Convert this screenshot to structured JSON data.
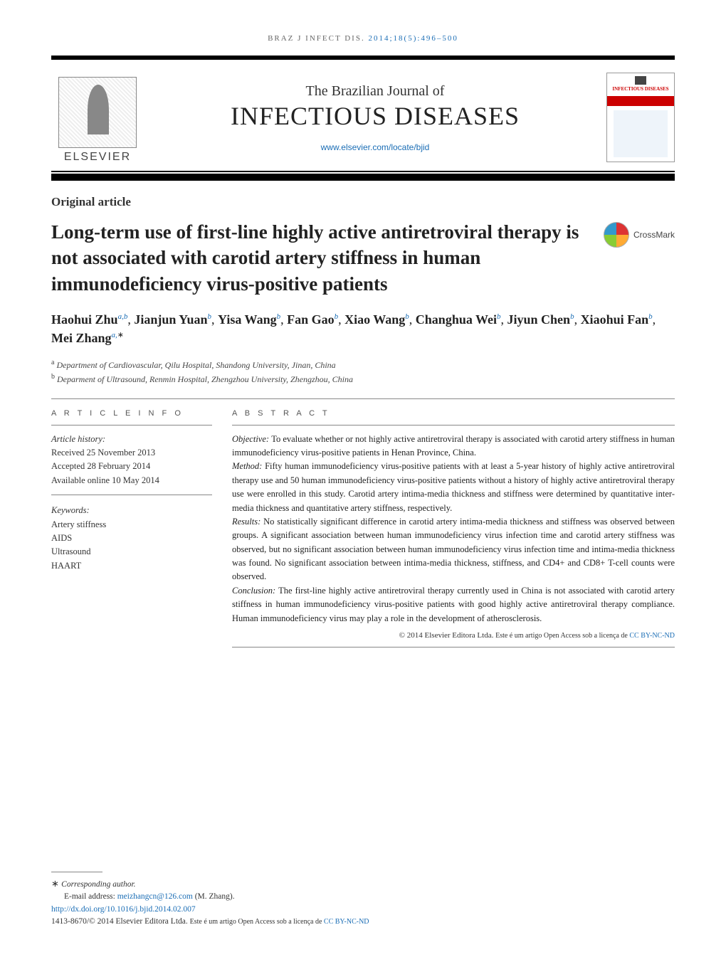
{
  "journal_ref": {
    "prefix": "BRAZ J INFECT DIS. ",
    "citation": "2014;18(5):496–500",
    "color_prefix": "#666666",
    "color_citation": "#1a6db5"
  },
  "header": {
    "elsevier_label": "ELSEVIER",
    "journal_sup": "The Brazilian Journal of",
    "journal_main": "INFECTIOUS DISEASES",
    "journal_url": "www.elsevier.com/locate/bjid",
    "cover_title": "INFECTIOUS DISEASES"
  },
  "article": {
    "type": "Original article",
    "title": "Long-term use of first-line highly active antiretroviral therapy is not associated with carotid artery stiffness in human immunodeficiency virus-positive patients",
    "crossmark_label": "CrossMark"
  },
  "authors": {
    "list": [
      {
        "name": "Haohui Zhu",
        "aff": "a,b"
      },
      {
        "name": "Jianjun Yuan",
        "aff": "b"
      },
      {
        "name": "Yisa Wang",
        "aff": "b"
      },
      {
        "name": "Fan Gao",
        "aff": "b"
      },
      {
        "name": "Xiao Wang",
        "aff": "b"
      },
      {
        "name": "Changhua Wei",
        "aff": "b"
      },
      {
        "name": "Jiyun Chen",
        "aff": "b"
      },
      {
        "name": "Xiaohui Fan",
        "aff": "b"
      },
      {
        "name": "Mei Zhang",
        "aff": "a,*"
      }
    ]
  },
  "affiliations": [
    {
      "label": "a",
      "text": "Department of Cardiovascular, Qilu Hospital, Shandong University, Jinan, China"
    },
    {
      "label": "b",
      "text": "Deparment of Ultrasound, Renmin Hospital, Zhengzhou University, Zhengzhou, China"
    }
  ],
  "left": {
    "info_heading": "A R T I C L E   I N F O",
    "history_heading": "Article history:",
    "history": [
      "Received 25 November 2013",
      "Accepted 28 February 2014",
      "Available online 10 May 2014"
    ],
    "keywords_heading": "Keywords:",
    "keywords": [
      "Artery stiffness",
      "AIDS",
      "Ultrasound",
      "HAART"
    ]
  },
  "abstract": {
    "heading": "A B S T R A C T",
    "objective_lead": "Objective: ",
    "objective": "To evaluate whether or not highly active antiretroviral therapy is associated with carotid artery stiffness in human immunodeficiency virus-positive patients in Henan Province, China.",
    "method_lead": "Method: ",
    "method": "Fifty human immunodeficiency virus-positive patients with at least a 5-year history of highly active antiretroviral therapy use and 50 human immunodeficiency virus-positive patients without a history of highly active antiretroviral therapy use were enrolled in this study. Carotid artery intima-media thickness and stiffness were determined by quantitative inter-media thickness and quantitative artery stiffness, respectively.",
    "results_lead": "Results: ",
    "results": "No statistically significant difference in carotid artery intima-media thickness and stiffness was observed between groups. A significant association between human immunodeficiency virus infection time and carotid artery stiffness was observed, but no significant association between human immunodeficiency virus infection time and intima-media thickness was found. No significant association between intima-media thickness, stiffness, and CD4+ and CD8+ T-cell counts were observed.",
    "conclusion_lead": "Conclusion: ",
    "conclusion": "The first-line highly active antiretroviral therapy currently used in China is not associated with carotid artery stiffness in human immunodeficiency virus-positive patients with good highly active antiretroviral therapy compliance. Human immunodeficiency virus may play a role in the development of atherosclerosis.",
    "copyright_prefix": "© 2014 Elsevier Editora Ltda. ",
    "copyright_open": "Este é um artigo Open Access sob a licença de ",
    "copyright_cc": "CC BY-NC-ND"
  },
  "footer": {
    "corresponding": "Corresponding author.",
    "email_label": "E-mail address: ",
    "email": "meizhangcn@126.com",
    "email_suffix": " (M. Zhang).",
    "doi": "http://dx.doi.org/10.1016/j.bjid.2014.02.007",
    "issn_line_prefix": "1413-8670/© 2014 Elsevier Editora Ltda. ",
    "issn_open": "Este é um artigo Open Access sob a licença de ",
    "issn_cc": "CC BY-NC-ND"
  },
  "styling": {
    "page_bg": "#ffffff",
    "link_color": "#1a6db5",
    "text_color": "#333333",
    "title_fontsize_pt": 20,
    "body_fontsize_pt": 9,
    "author_fontsize_pt": 13,
    "rule_color": "#888888",
    "black_bar_color": "#000000"
  }
}
